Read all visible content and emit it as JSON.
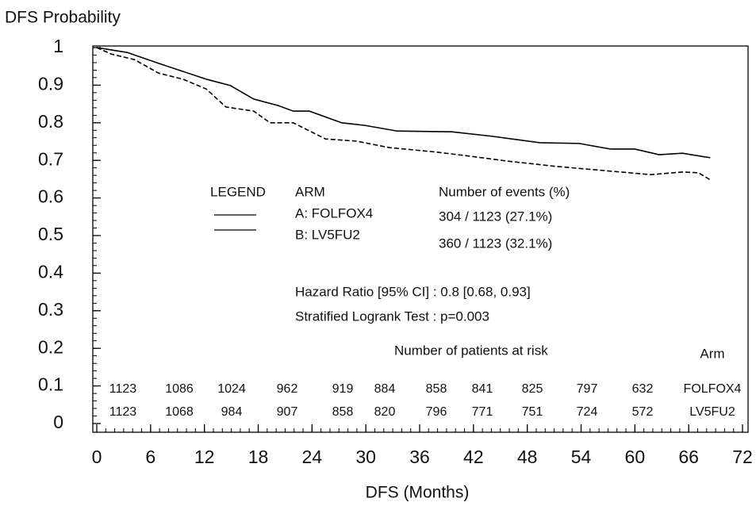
{
  "chart_data": {
    "type": "line",
    "y_label": "DFS Probability",
    "x_label": "DFS (Months)",
    "xlim": [
      0,
      72
    ],
    "xticks": [
      0,
      6,
      12,
      18,
      24,
      30,
      36,
      42,
      48,
      54,
      60,
      66,
      72
    ],
    "ylim": [
      0,
      1
    ],
    "yticks": [
      0,
      0.1,
      0.2,
      0.3,
      0.4,
      0.5,
      0.6,
      0.7,
      0.8,
      0.9,
      1
    ],
    "series": [
      {
        "name": "FOLFOX4",
        "color": "#000000",
        "dash": false,
        "x": [
          0,
          3.4,
          6.9,
          12.2,
          14.9,
          17.5,
          20.2,
          21.9,
          23.7,
          27.3,
          29.9,
          33.5,
          39.6,
          44.1,
          49.4,
          53.8,
          57.3,
          60,
          62.7,
          65.3,
          68.4
        ],
        "values": [
          1.0,
          0.987,
          0.958,
          0.916,
          0.899,
          0.863,
          0.846,
          0.831,
          0.831,
          0.8,
          0.793,
          0.778,
          0.776,
          0.764,
          0.747,
          0.745,
          0.73,
          0.73,
          0.715,
          0.719,
          0.707
        ]
      },
      {
        "name": "LV5FU2",
        "color": "#000000",
        "dash": true,
        "x": [
          0,
          1.6,
          4.2,
          6.9,
          9.6,
          12.2,
          14.4,
          17.5,
          19.3,
          21.9,
          25.5,
          29.0,
          32.6,
          37.9,
          42.3,
          45.8,
          51.2,
          56.5,
          61.8,
          65.3,
          67.1,
          68.4
        ],
        "values": [
          1.0,
          0.983,
          0.968,
          0.932,
          0.916,
          0.89,
          0.842,
          0.831,
          0.8,
          0.8,
          0.757,
          0.751,
          0.734,
          0.722,
          0.709,
          0.698,
          0.684,
          0.673,
          0.662,
          0.669,
          0.667,
          0.648
        ]
      }
    ],
    "legend": {
      "title": "LEGEND",
      "arm_header": "ARM",
      "entries": [
        "A:  FOLFOX4",
        "B:  LV5FU2"
      ],
      "events_header": "Number of events (%)",
      "events": [
        "304 / 1123  (27.1%)",
        "360 / 1123  (32.1%)"
      ]
    },
    "annotations": [
      "Hazard Ratio [95% CI] : 0.8 [0.68, 0.93]",
      "Stratified Logrank Test : p=0.003"
    ],
    "at_risk": {
      "title": "Number of patients at risk",
      "arm_header": "Arm",
      "rows": [
        [
          1123,
          1086,
          1024,
          962,
          919,
          884,
          858,
          841,
          825,
          797,
          632
        ],
        [
          1123,
          1068,
          984,
          907,
          858,
          820,
          796,
          771,
          751,
          724,
          572
        ]
      ]
    }
  }
}
